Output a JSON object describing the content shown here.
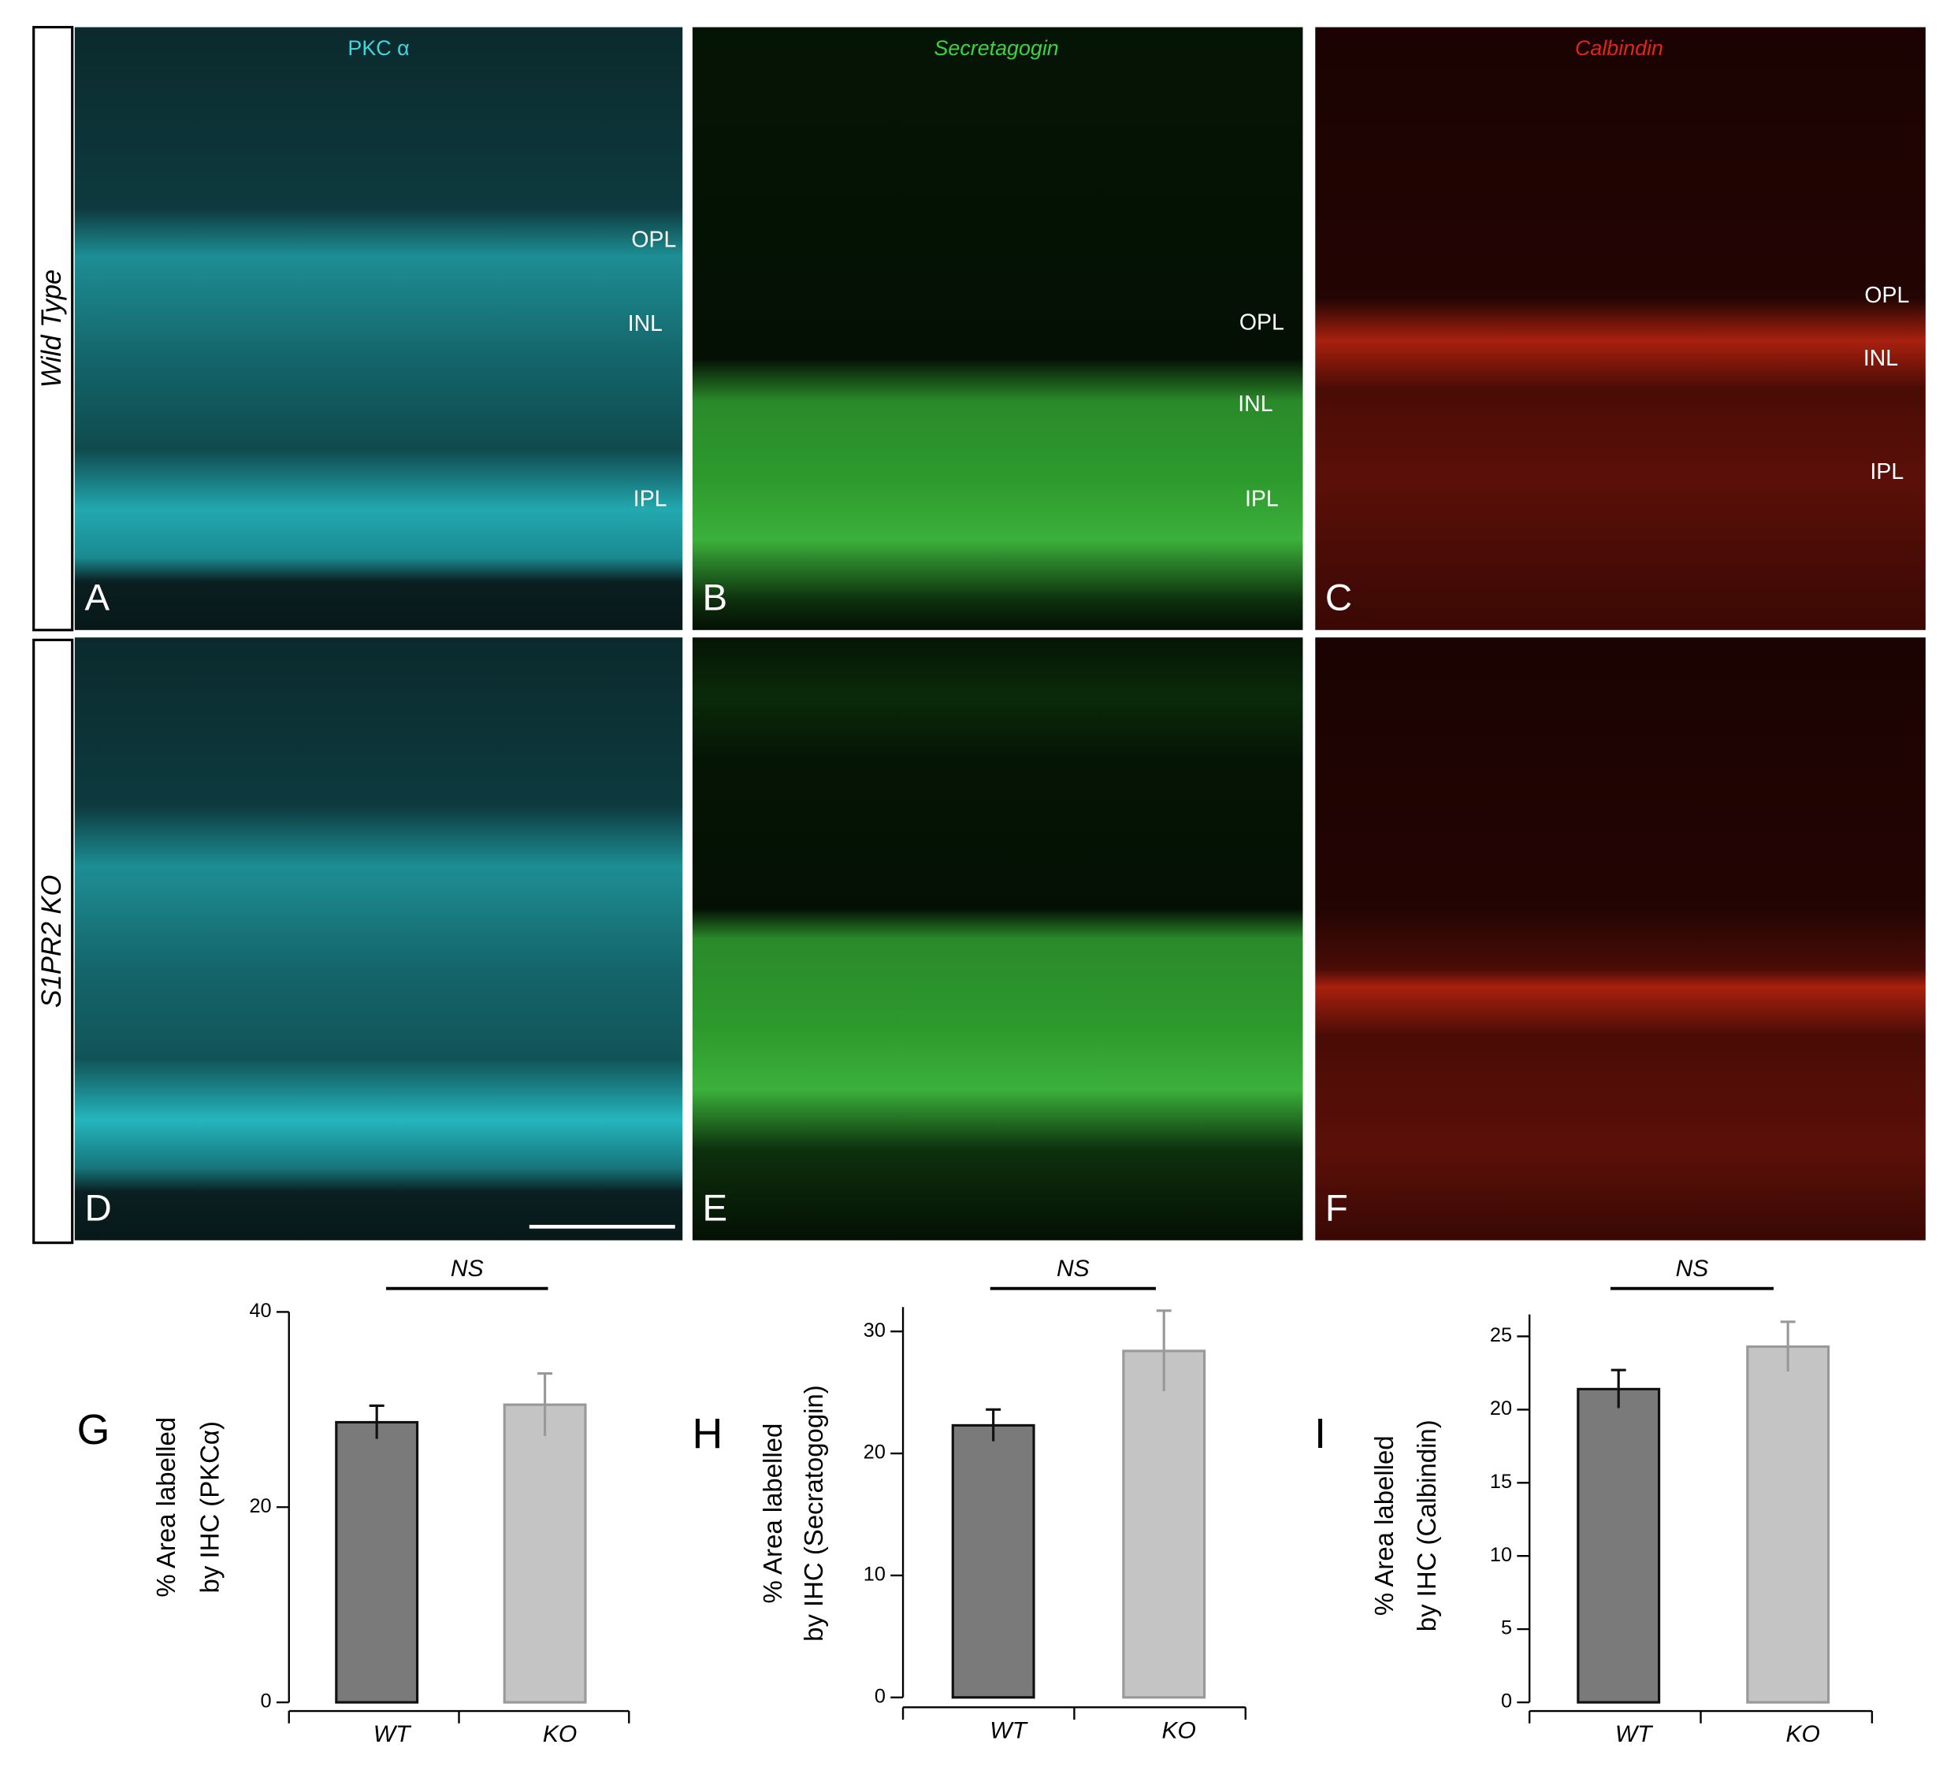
{
  "row_labels": [
    "Wild Type",
    "S1PR2 KO"
  ],
  "panels": [
    {
      "letter": "A",
      "stain": "PKC α",
      "layers": [
        "OPL",
        "INL",
        "IPL"
      ]
    },
    {
      "letter": "B",
      "stain": "Secretagogin",
      "layers": [
        "OPL",
        "INL",
        "IPL"
      ]
    },
    {
      "letter": "C",
      "stain": "Calbindin",
      "layers": [
        "OPL",
        "INL",
        "IPL"
      ]
    },
    {
      "letter": "D"
    },
    {
      "letter": "E"
    },
    {
      "letter": "F"
    }
  ],
  "chart_data": [
    {
      "type": "bar",
      "panel": "G",
      "ylabel": [
        "% Area labelled",
        "by IHC (PKCα)"
      ],
      "annotation": "NS",
      "categories": [
        "WT",
        "KO"
      ],
      "values": [
        28.7,
        30.5
      ],
      "errors": [
        1.7,
        3.2
      ],
      "colors": [
        "#7a7a7a",
        "#c4c4c4"
      ],
      "ylim": [
        0,
        40
      ],
      "yticks": [
        0,
        20,
        40
      ]
    },
    {
      "type": "bar",
      "panel": "H",
      "ylabel": [
        "% Area labelled",
        "by IHC (Secratogogin)"
      ],
      "annotation": "NS",
      "categories": [
        "WT",
        "KO"
      ],
      "values": [
        22.3,
        28.4
      ],
      "errors": [
        1.3,
        3.3
      ],
      "colors": [
        "#7a7a7a",
        "#c4c4c4"
      ],
      "ylim": [
        0,
        32
      ],
      "yticks": [
        0,
        10,
        20,
        30
      ]
    },
    {
      "type": "bar",
      "panel": "I",
      "ylabel": [
        "% Area labelled",
        "by IHC (Calbindin)"
      ],
      "annotation": "NS",
      "categories": [
        "WT",
        "KO"
      ],
      "values": [
        21.4,
        24.3
      ],
      "errors": [
        1.3,
        1.7
      ],
      "colors": [
        "#7a7a7a",
        "#c4c4c4"
      ],
      "ylim": [
        0,
        26.5
      ],
      "yticks": [
        0,
        5,
        10,
        15,
        20,
        25
      ]
    }
  ]
}
